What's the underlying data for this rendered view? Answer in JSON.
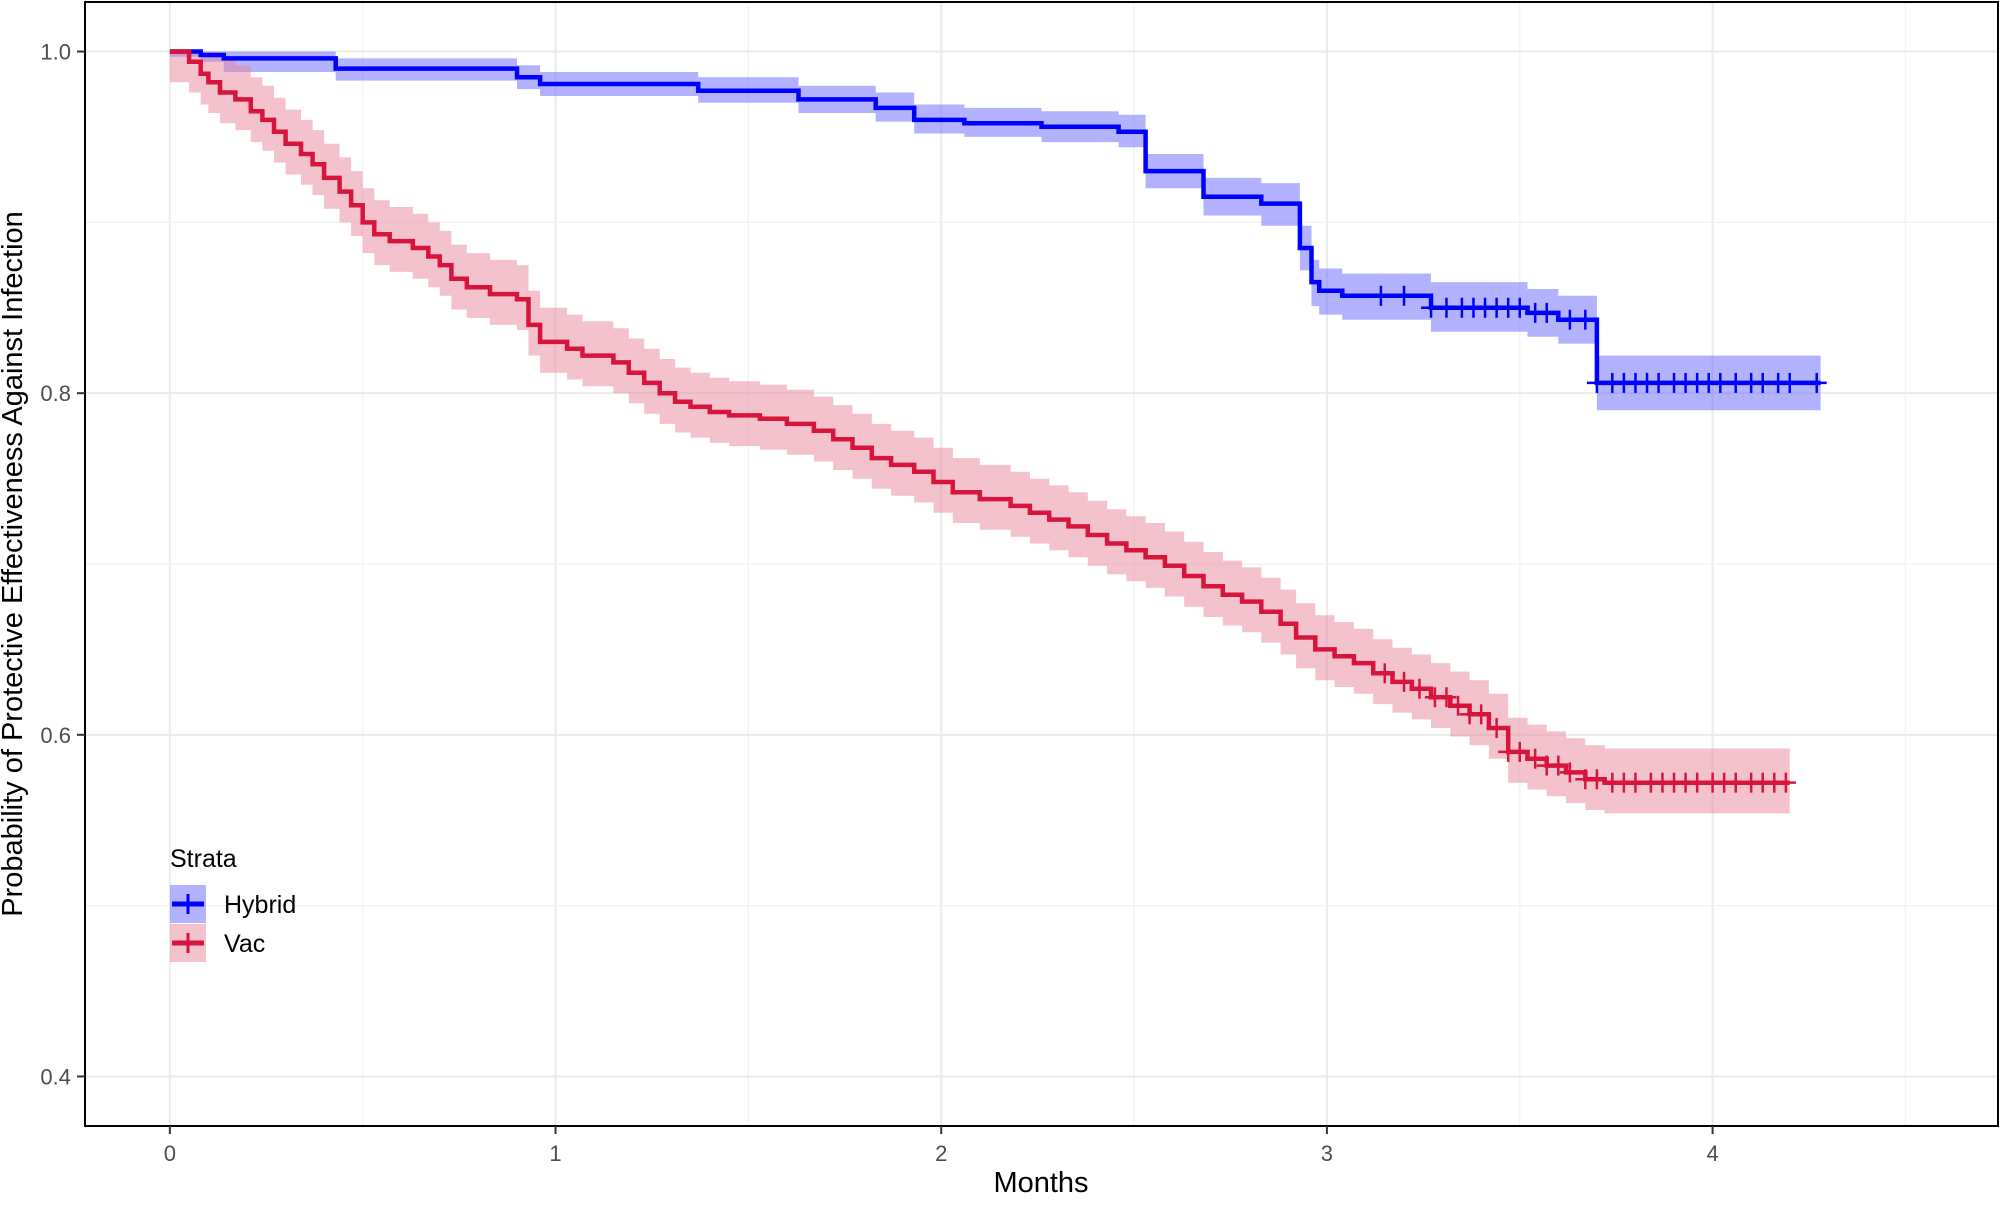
{
  "chart_data": {
    "type": "line",
    "xlabel": "Months",
    "ylabel": "Probability of Protective Effectiveness Against Infection",
    "xlim": [
      -0.22,
      4.74
    ],
    "ylim": [
      0.371,
      1.029
    ],
    "xticks": [
      0,
      1,
      2,
      3,
      4
    ],
    "xtick_labels": [
      "0",
      "1",
      "2",
      "3",
      "4"
    ],
    "yticks": [
      0.4,
      0.6,
      0.8,
      1.0
    ],
    "ytick_labels": [
      "0.4",
      "0.6",
      "0.8",
      "1.0"
    ],
    "grid": true,
    "legend": {
      "title": "Strata",
      "position": "bottom-left"
    },
    "series": [
      {
        "name": "Hybrid",
        "color": "#0000ff",
        "band_color": "#6666ff",
        "steps": [
          [
            0.0,
            1.0
          ],
          [
            0.08,
            0.998
          ],
          [
            0.14,
            0.996
          ],
          [
            0.43,
            0.99
          ],
          [
            0.9,
            0.985
          ],
          [
            0.96,
            0.981
          ],
          [
            1.37,
            0.977
          ],
          [
            1.63,
            0.972
          ],
          [
            1.83,
            0.967
          ],
          [
            1.93,
            0.96
          ],
          [
            2.06,
            0.958
          ],
          [
            2.26,
            0.956
          ],
          [
            2.46,
            0.953
          ],
          [
            2.53,
            0.93
          ],
          [
            2.68,
            0.915
          ],
          [
            2.83,
            0.911
          ],
          [
            2.93,
            0.885
          ],
          [
            2.96,
            0.865
          ],
          [
            2.98,
            0.86
          ],
          [
            3.04,
            0.857
          ],
          [
            3.27,
            0.85
          ],
          [
            3.52,
            0.847
          ],
          [
            3.6,
            0.843
          ],
          [
            3.7,
            0.806
          ],
          [
            4.28,
            0.806
          ]
        ],
        "lower": [
          0.997,
          0.994,
          0.988,
          0.983,
          0.978,
          0.974,
          0.97,
          0.964,
          0.959,
          0.952,
          0.95,
          0.947,
          0.944,
          0.92,
          0.904,
          0.898,
          0.872,
          0.851,
          0.846,
          0.843,
          0.836,
          0.833,
          0.829,
          0.79,
          0.79
        ],
        "upper": [
          1.0,
          1.0,
          1.0,
          0.996,
          0.992,
          0.988,
          0.985,
          0.98,
          0.976,
          0.969,
          0.967,
          0.965,
          0.963,
          0.94,
          0.926,
          0.923,
          0.898,
          0.878,
          0.873,
          0.87,
          0.865,
          0.861,
          0.857,
          0.822,
          0.822
        ],
        "censor_times": [
          3.14,
          3.2,
          3.27,
          3.31,
          3.35,
          3.38,
          3.41,
          3.44,
          3.47,
          3.5,
          3.54,
          3.57,
          3.63,
          3.67,
          3.7,
          3.74,
          3.77,
          3.8,
          3.83,
          3.86,
          3.9,
          3.93,
          3.96,
          3.99,
          4.02,
          4.06,
          4.1,
          4.13,
          4.17,
          4.2,
          4.27
        ]
      },
      {
        "name": "Vac",
        "color": "#d7143c",
        "band_color": "#e8869c",
        "steps": [
          [
            0.0,
            1.0
          ],
          [
            0.05,
            0.994
          ],
          [
            0.08,
            0.987
          ],
          [
            0.1,
            0.982
          ],
          [
            0.13,
            0.976
          ],
          [
            0.17,
            0.972
          ],
          [
            0.21,
            0.965
          ],
          [
            0.24,
            0.96
          ],
          [
            0.27,
            0.953
          ],
          [
            0.3,
            0.946
          ],
          [
            0.34,
            0.94
          ],
          [
            0.37,
            0.934
          ],
          [
            0.4,
            0.926
          ],
          [
            0.44,
            0.918
          ],
          [
            0.47,
            0.91
          ],
          [
            0.5,
            0.9
          ],
          [
            0.53,
            0.893
          ],
          [
            0.57,
            0.889
          ],
          [
            0.63,
            0.885
          ],
          [
            0.67,
            0.88
          ],
          [
            0.7,
            0.875
          ],
          [
            0.73,
            0.867
          ],
          [
            0.77,
            0.862
          ],
          [
            0.83,
            0.858
          ],
          [
            0.9,
            0.855
          ],
          [
            0.93,
            0.84
          ],
          [
            0.96,
            0.83
          ],
          [
            1.03,
            0.826
          ],
          [
            1.07,
            0.822
          ],
          [
            1.15,
            0.818
          ],
          [
            1.19,
            0.812
          ],
          [
            1.23,
            0.806
          ],
          [
            1.27,
            0.8
          ],
          [
            1.31,
            0.795
          ],
          [
            1.35,
            0.792
          ],
          [
            1.4,
            0.789
          ],
          [
            1.45,
            0.787
          ],
          [
            1.53,
            0.785
          ],
          [
            1.6,
            0.782
          ],
          [
            1.67,
            0.778
          ],
          [
            1.72,
            0.773
          ],
          [
            1.77,
            0.768
          ],
          [
            1.82,
            0.762
          ],
          [
            1.87,
            0.758
          ],
          [
            1.93,
            0.754
          ],
          [
            1.98,
            0.748
          ],
          [
            2.03,
            0.742
          ],
          [
            2.1,
            0.738
          ],
          [
            2.18,
            0.734
          ],
          [
            2.23,
            0.73
          ],
          [
            2.28,
            0.726
          ],
          [
            2.33,
            0.722
          ],
          [
            2.38,
            0.717
          ],
          [
            2.43,
            0.712
          ],
          [
            2.48,
            0.708
          ],
          [
            2.53,
            0.704
          ],
          [
            2.58,
            0.699
          ],
          [
            2.63,
            0.693
          ],
          [
            2.68,
            0.687
          ],
          [
            2.73,
            0.682
          ],
          [
            2.78,
            0.678
          ],
          [
            2.83,
            0.672
          ],
          [
            2.88,
            0.665
          ],
          [
            2.92,
            0.657
          ],
          [
            2.97,
            0.65
          ],
          [
            3.02,
            0.646
          ],
          [
            3.07,
            0.642
          ],
          [
            3.12,
            0.636
          ],
          [
            3.17,
            0.631
          ],
          [
            3.22,
            0.627
          ],
          [
            3.27,
            0.622
          ],
          [
            3.32,
            0.617
          ],
          [
            3.37,
            0.612
          ],
          [
            3.42,
            0.604
          ],
          [
            3.47,
            0.59
          ],
          [
            3.52,
            0.586
          ],
          [
            3.57,
            0.582
          ],
          [
            3.62,
            0.578
          ],
          [
            3.67,
            0.574
          ],
          [
            3.72,
            0.572
          ],
          [
            3.8,
            0.572
          ],
          [
            4.2,
            0.572
          ]
        ],
        "lower_offset": 0.018,
        "upper_offset": 0.02,
        "censor_times": [
          3.15,
          3.2,
          3.24,
          3.28,
          3.31,
          3.34,
          3.37,
          3.4,
          3.44,
          3.47,
          3.5,
          3.54,
          3.57,
          3.6,
          3.63,
          3.67,
          3.7,
          3.74,
          3.77,
          3.8,
          3.84,
          3.87,
          3.9,
          3.93,
          3.96,
          4.0,
          4.03,
          4.06,
          4.1,
          4.13,
          4.16,
          4.19
        ]
      }
    ]
  }
}
